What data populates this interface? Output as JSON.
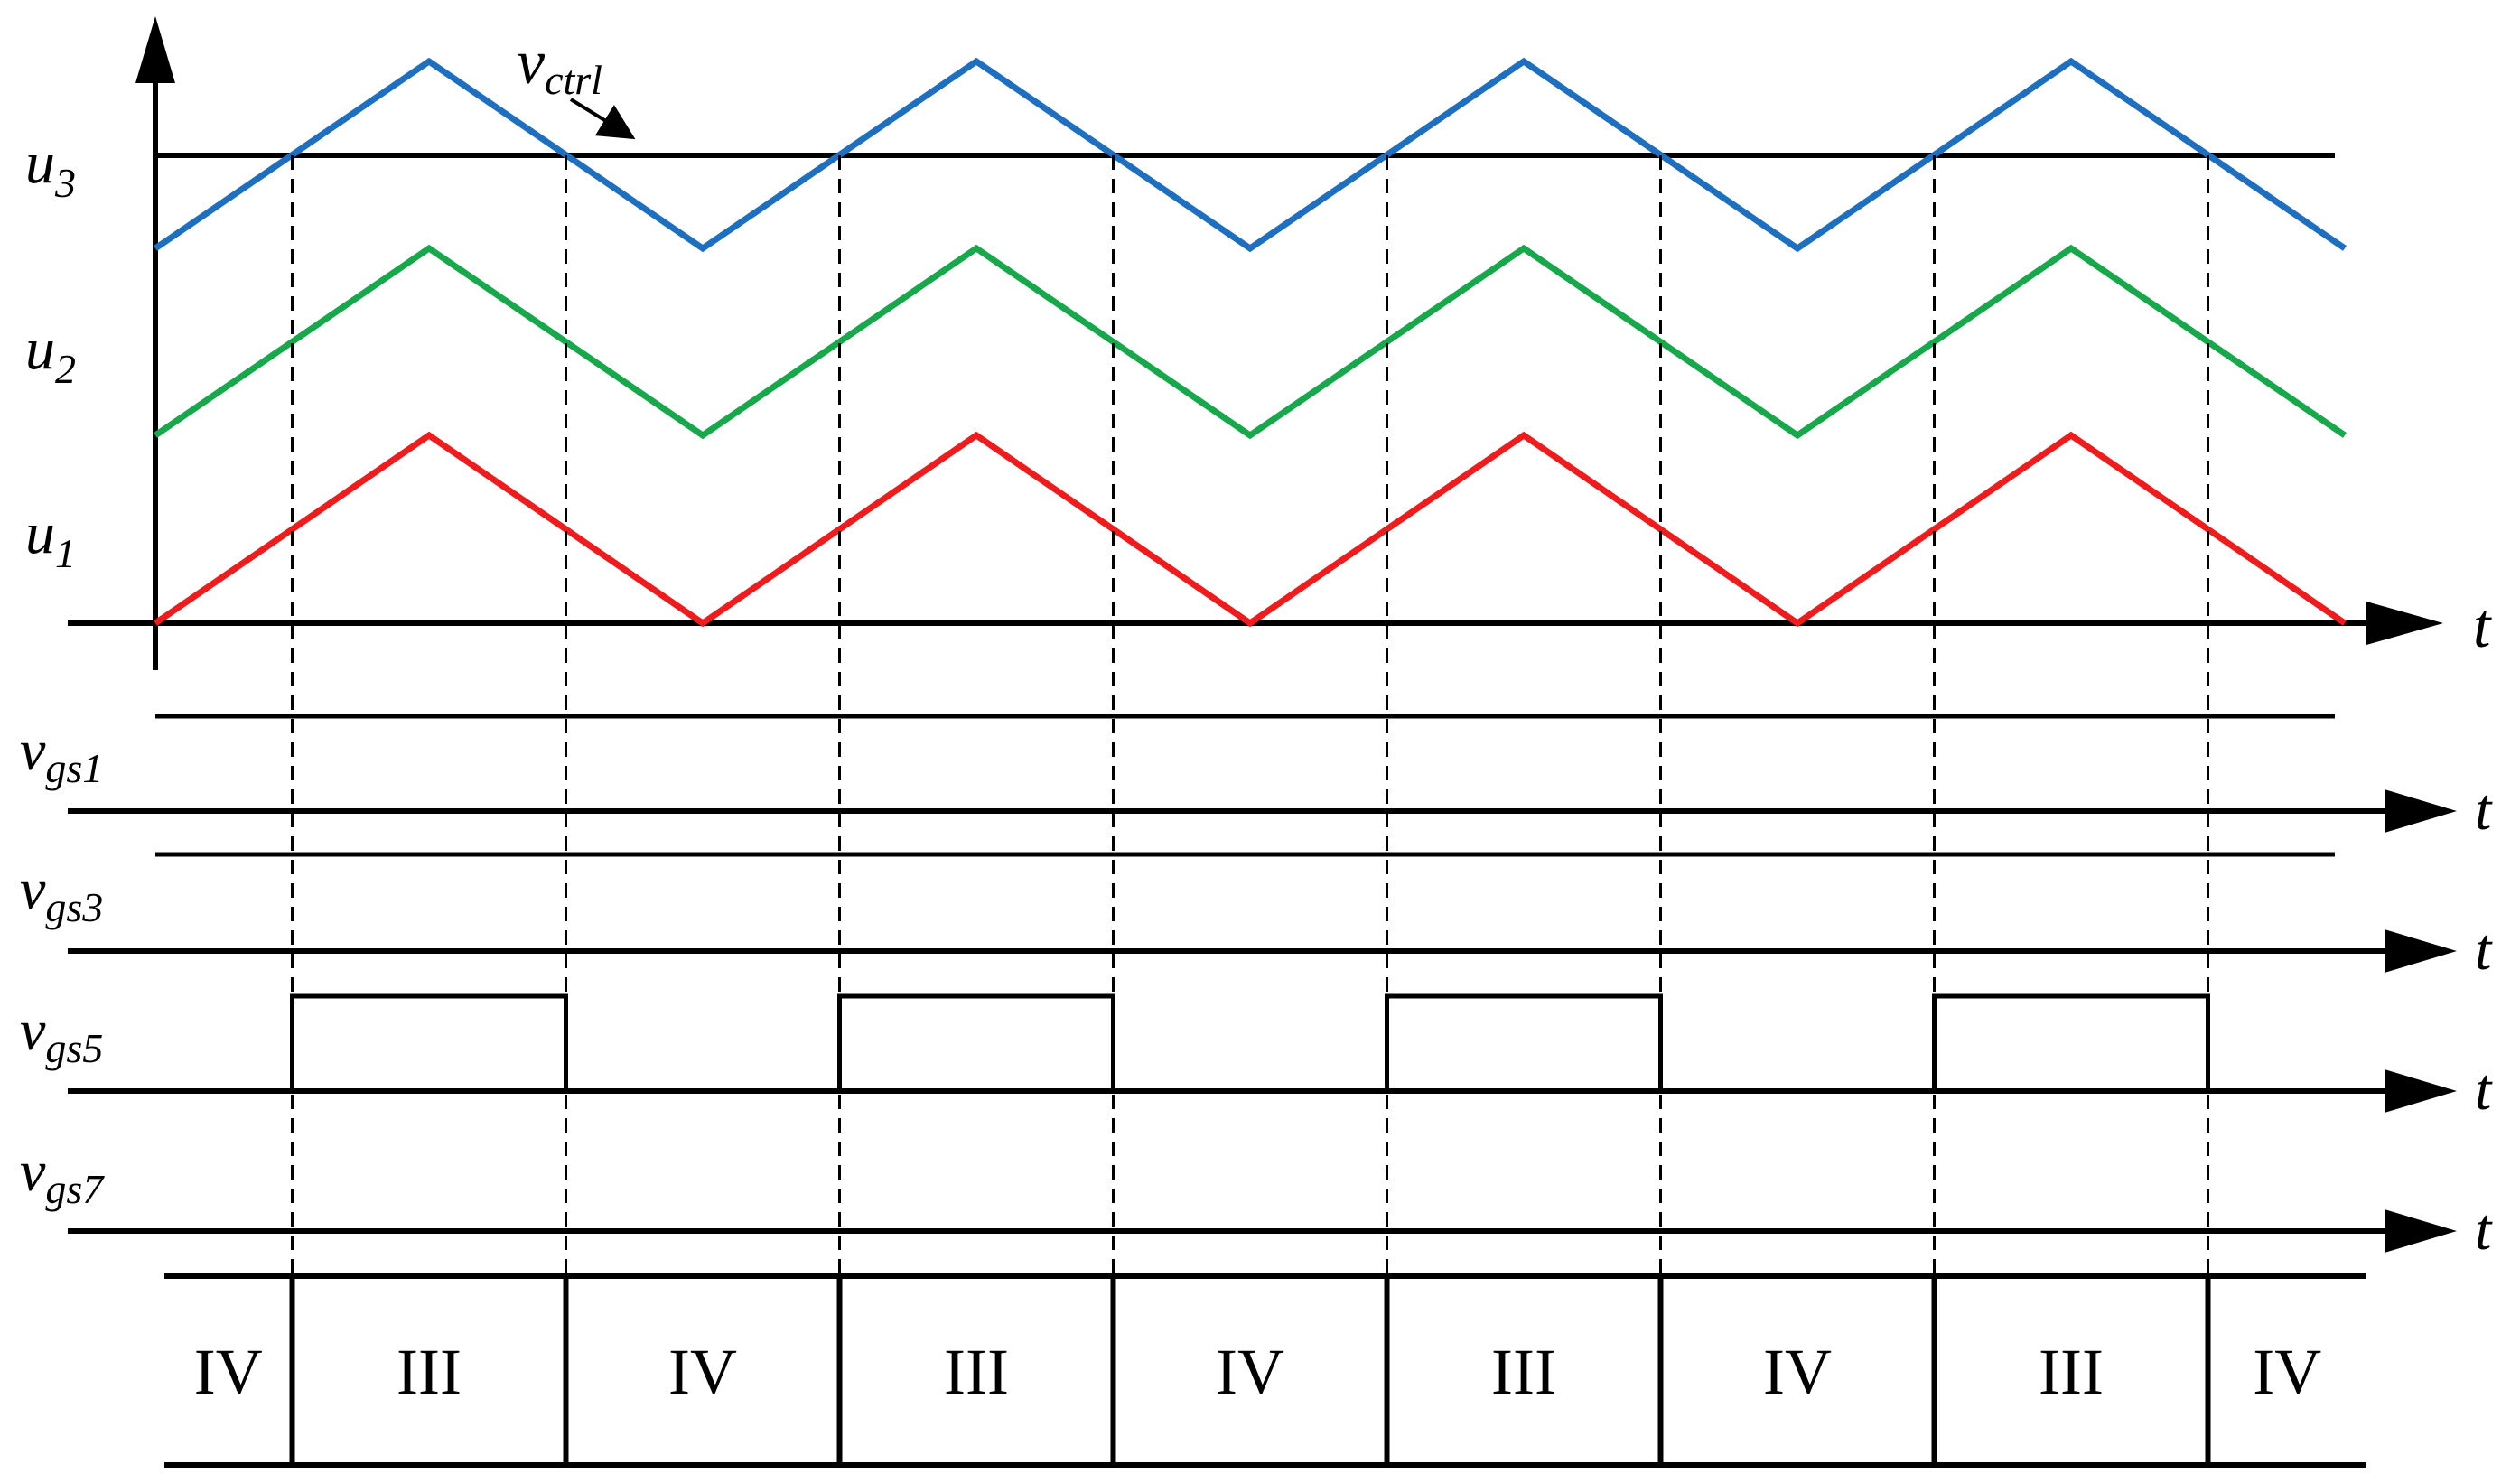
{
  "carrier_labels": [
    {
      "base": "u",
      "sub": "3"
    },
    {
      "base": "u",
      "sub": "2"
    },
    {
      "base": "u",
      "sub": "1"
    }
  ],
  "vctrl_label": {
    "base": "v",
    "sub": "ctrl"
  },
  "time_label": "t",
  "gate_labels": [
    {
      "base": "v",
      "sub": "gs1"
    },
    {
      "base": "v",
      "sub": "gs3"
    },
    {
      "base": "v",
      "sub": "gs5"
    },
    {
      "base": "v",
      "sub": "gs7"
    }
  ],
  "modes": [
    "IV",
    "III",
    "IV",
    "III",
    "IV",
    "III",
    "IV",
    "III",
    "IV"
  ],
  "colors": {
    "u3": "#1f6fc1",
    "u2": "#16a84a",
    "u1": "#ee1c1c",
    "axis": "#000000"
  }
}
